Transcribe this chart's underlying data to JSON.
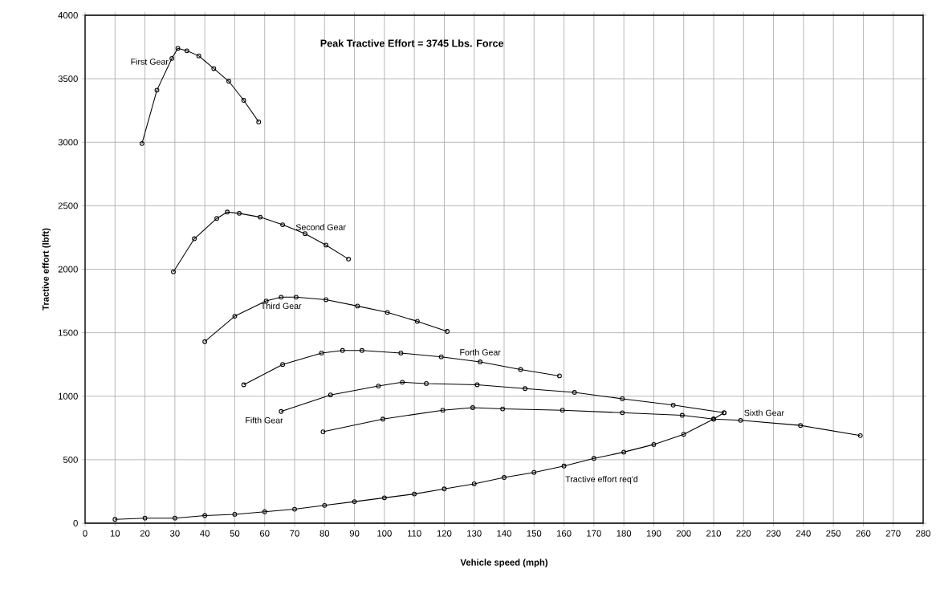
{
  "chart_data": {
    "type": "line",
    "title": "Peak Tractive Effort = 3745 Lbs. Force",
    "xlabel": "Vehicle speed  (mph)",
    "ylabel": "Tractive effort (lbft)",
    "xlim": [
      0,
      280
    ],
    "ylim": [
      0,
      4000
    ],
    "xticks": [
      0,
      10,
      20,
      30,
      40,
      50,
      60,
      70,
      80,
      90,
      100,
      110,
      120,
      130,
      140,
      150,
      160,
      170,
      180,
      190,
      200,
      210,
      220,
      230,
      240,
      250,
      260,
      270,
      280
    ],
    "yticks": [
      0,
      500,
      1000,
      1500,
      2000,
      2500,
      3000,
      3500,
      4000
    ],
    "grid": true,
    "marker": "circle",
    "line_style": "solid",
    "series": [
      {
        "name": "First Gear",
        "color": "#000000",
        "x": [
          19,
          24,
          29,
          31,
          34,
          38,
          43,
          48,
          53,
          58
        ],
        "values": [
          2990,
          3410,
          3660,
          3740,
          3720,
          3680,
          3580,
          3480,
          3330,
          3160
        ]
      },
      {
        "name": "Second Gear",
        "color": "#000000",
        "x": [
          29.5,
          36.5,
          44,
          47.5,
          51.5,
          58.5,
          66,
          73.5,
          80.5,
          88
        ],
        "values": [
          1980,
          2240,
          2400,
          2450,
          2440,
          2410,
          2350,
          2280,
          2190,
          2080
        ]
      },
      {
        "name": "Third Gear",
        "color": "#000000",
        "x": [
          40,
          50,
          60.5,
          65.5,
          70.5,
          80.5,
          91,
          101,
          111,
          121
        ],
        "values": [
          1430,
          1630,
          1750,
          1780,
          1780,
          1760,
          1710,
          1660,
          1590,
          1510
        ]
      },
      {
        "name": "Forth Gear",
        "color": "#000000",
        "x": [
          53,
          66,
          79,
          86,
          92.5,
          105.5,
          119,
          132,
          145.5,
          158.5
        ],
        "values": [
          1090,
          1250,
          1340,
          1360,
          1360,
          1340,
          1310,
          1270,
          1210,
          1160
        ]
      },
      {
        "name": "Fifth Gear",
        "color": "#000000",
        "x": [
          65.5,
          82,
          98,
          106,
          114,
          131,
          147,
          163.5,
          179.5,
          196.5,
          213.5
        ],
        "values": [
          880,
          1010,
          1080,
          1110,
          1100,
          1090,
          1060,
          1030,
          980,
          930,
          870
        ]
      },
      {
        "name": "Sixth Gear",
        "color": "#000000",
        "x": [
          79.5,
          99.5,
          119.5,
          129.5,
          139.5,
          159.5,
          179.5,
          199.5,
          210,
          219,
          239,
          259
        ],
        "values": [
          720,
          820,
          890,
          910,
          900,
          890,
          870,
          850,
          820,
          810,
          770,
          690
        ]
      },
      {
        "name": "Tractive effort req'd",
        "color": "#000000",
        "x": [
          10,
          20,
          30,
          40,
          50,
          60,
          70,
          80,
          90,
          100,
          110,
          120,
          130,
          140,
          150,
          160,
          170,
          180,
          190,
          200,
          210,
          213.5
        ],
        "values": [
          30,
          40,
          40,
          60,
          70,
          90,
          110,
          140,
          170,
          200,
          230,
          270,
          310,
          360,
          400,
          450,
          510,
          560,
          620,
          700,
          820,
          870
        ]
      }
    ]
  }
}
